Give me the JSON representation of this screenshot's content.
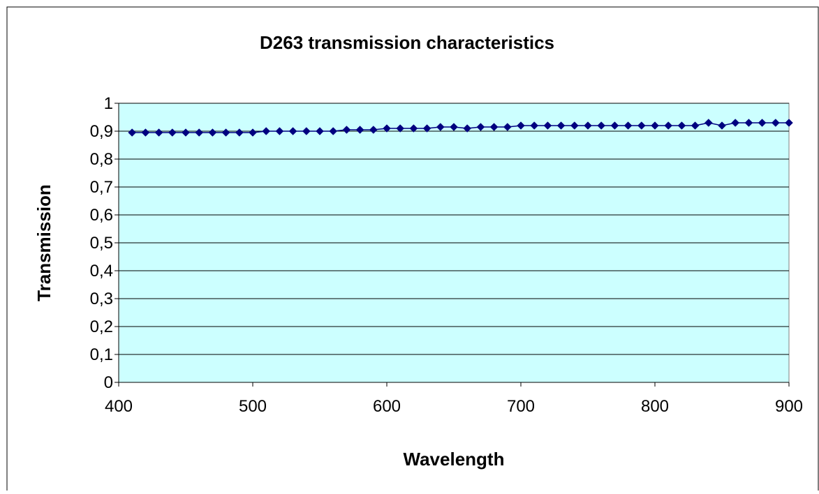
{
  "chart_data": {
    "type": "line",
    "title": "D263 transmission characteristics",
    "xlabel": "Wavelength",
    "ylabel": "Transmission",
    "xlim": [
      400,
      900
    ],
    "ylim": [
      0,
      1
    ],
    "x_ticks": [
      400,
      500,
      600,
      700,
      800,
      900
    ],
    "x_tick_labels": [
      "400",
      "500",
      "600",
      "700",
      "800",
      "900"
    ],
    "y_ticks": [
      0,
      0.1,
      0.2,
      0.3,
      0.4,
      0.5,
      0.6,
      0.7,
      0.8,
      0.9,
      1
    ],
    "y_tick_labels": [
      "0",
      "0,1",
      "0,2",
      "0,3",
      "0,4",
      "0,5",
      "0,6",
      "0,7",
      "0,8",
      "0,9",
      "1"
    ],
    "grid": "horizontal",
    "legend": "none",
    "series": [
      {
        "x": [
          410,
          420,
          430,
          440,
          450,
          460,
          470,
          480,
          490,
          500,
          510,
          520,
          530,
          540,
          550,
          560,
          570,
          580,
          590,
          600,
          610,
          620,
          630,
          640,
          650,
          660,
          670,
          680,
          690,
          700,
          710,
          720,
          730,
          740,
          750,
          760,
          770,
          780,
          790,
          800,
          810,
          820,
          830,
          840,
          850,
          860,
          870,
          880,
          890,
          900
        ],
        "y": [
          0.895,
          0.895,
          0.895,
          0.895,
          0.895,
          0.895,
          0.895,
          0.895,
          0.895,
          0.895,
          0.9,
          0.9,
          0.9,
          0.9,
          0.9,
          0.9,
          0.905,
          0.905,
          0.905,
          0.91,
          0.91,
          0.91,
          0.91,
          0.915,
          0.915,
          0.91,
          0.915,
          0.915,
          0.915,
          0.92,
          0.92,
          0.92,
          0.92,
          0.92,
          0.92,
          0.92,
          0.92,
          0.92,
          0.92,
          0.92,
          0.92,
          0.92,
          0.92,
          0.93,
          0.92,
          0.93,
          0.93,
          0.93,
          0.93,
          0.93
        ]
      }
    ],
    "colors": {
      "plot_background": "#ccffff",
      "series": "#000080",
      "gridline": "#000000",
      "axis": "#000000",
      "frame": "#000000"
    }
  }
}
